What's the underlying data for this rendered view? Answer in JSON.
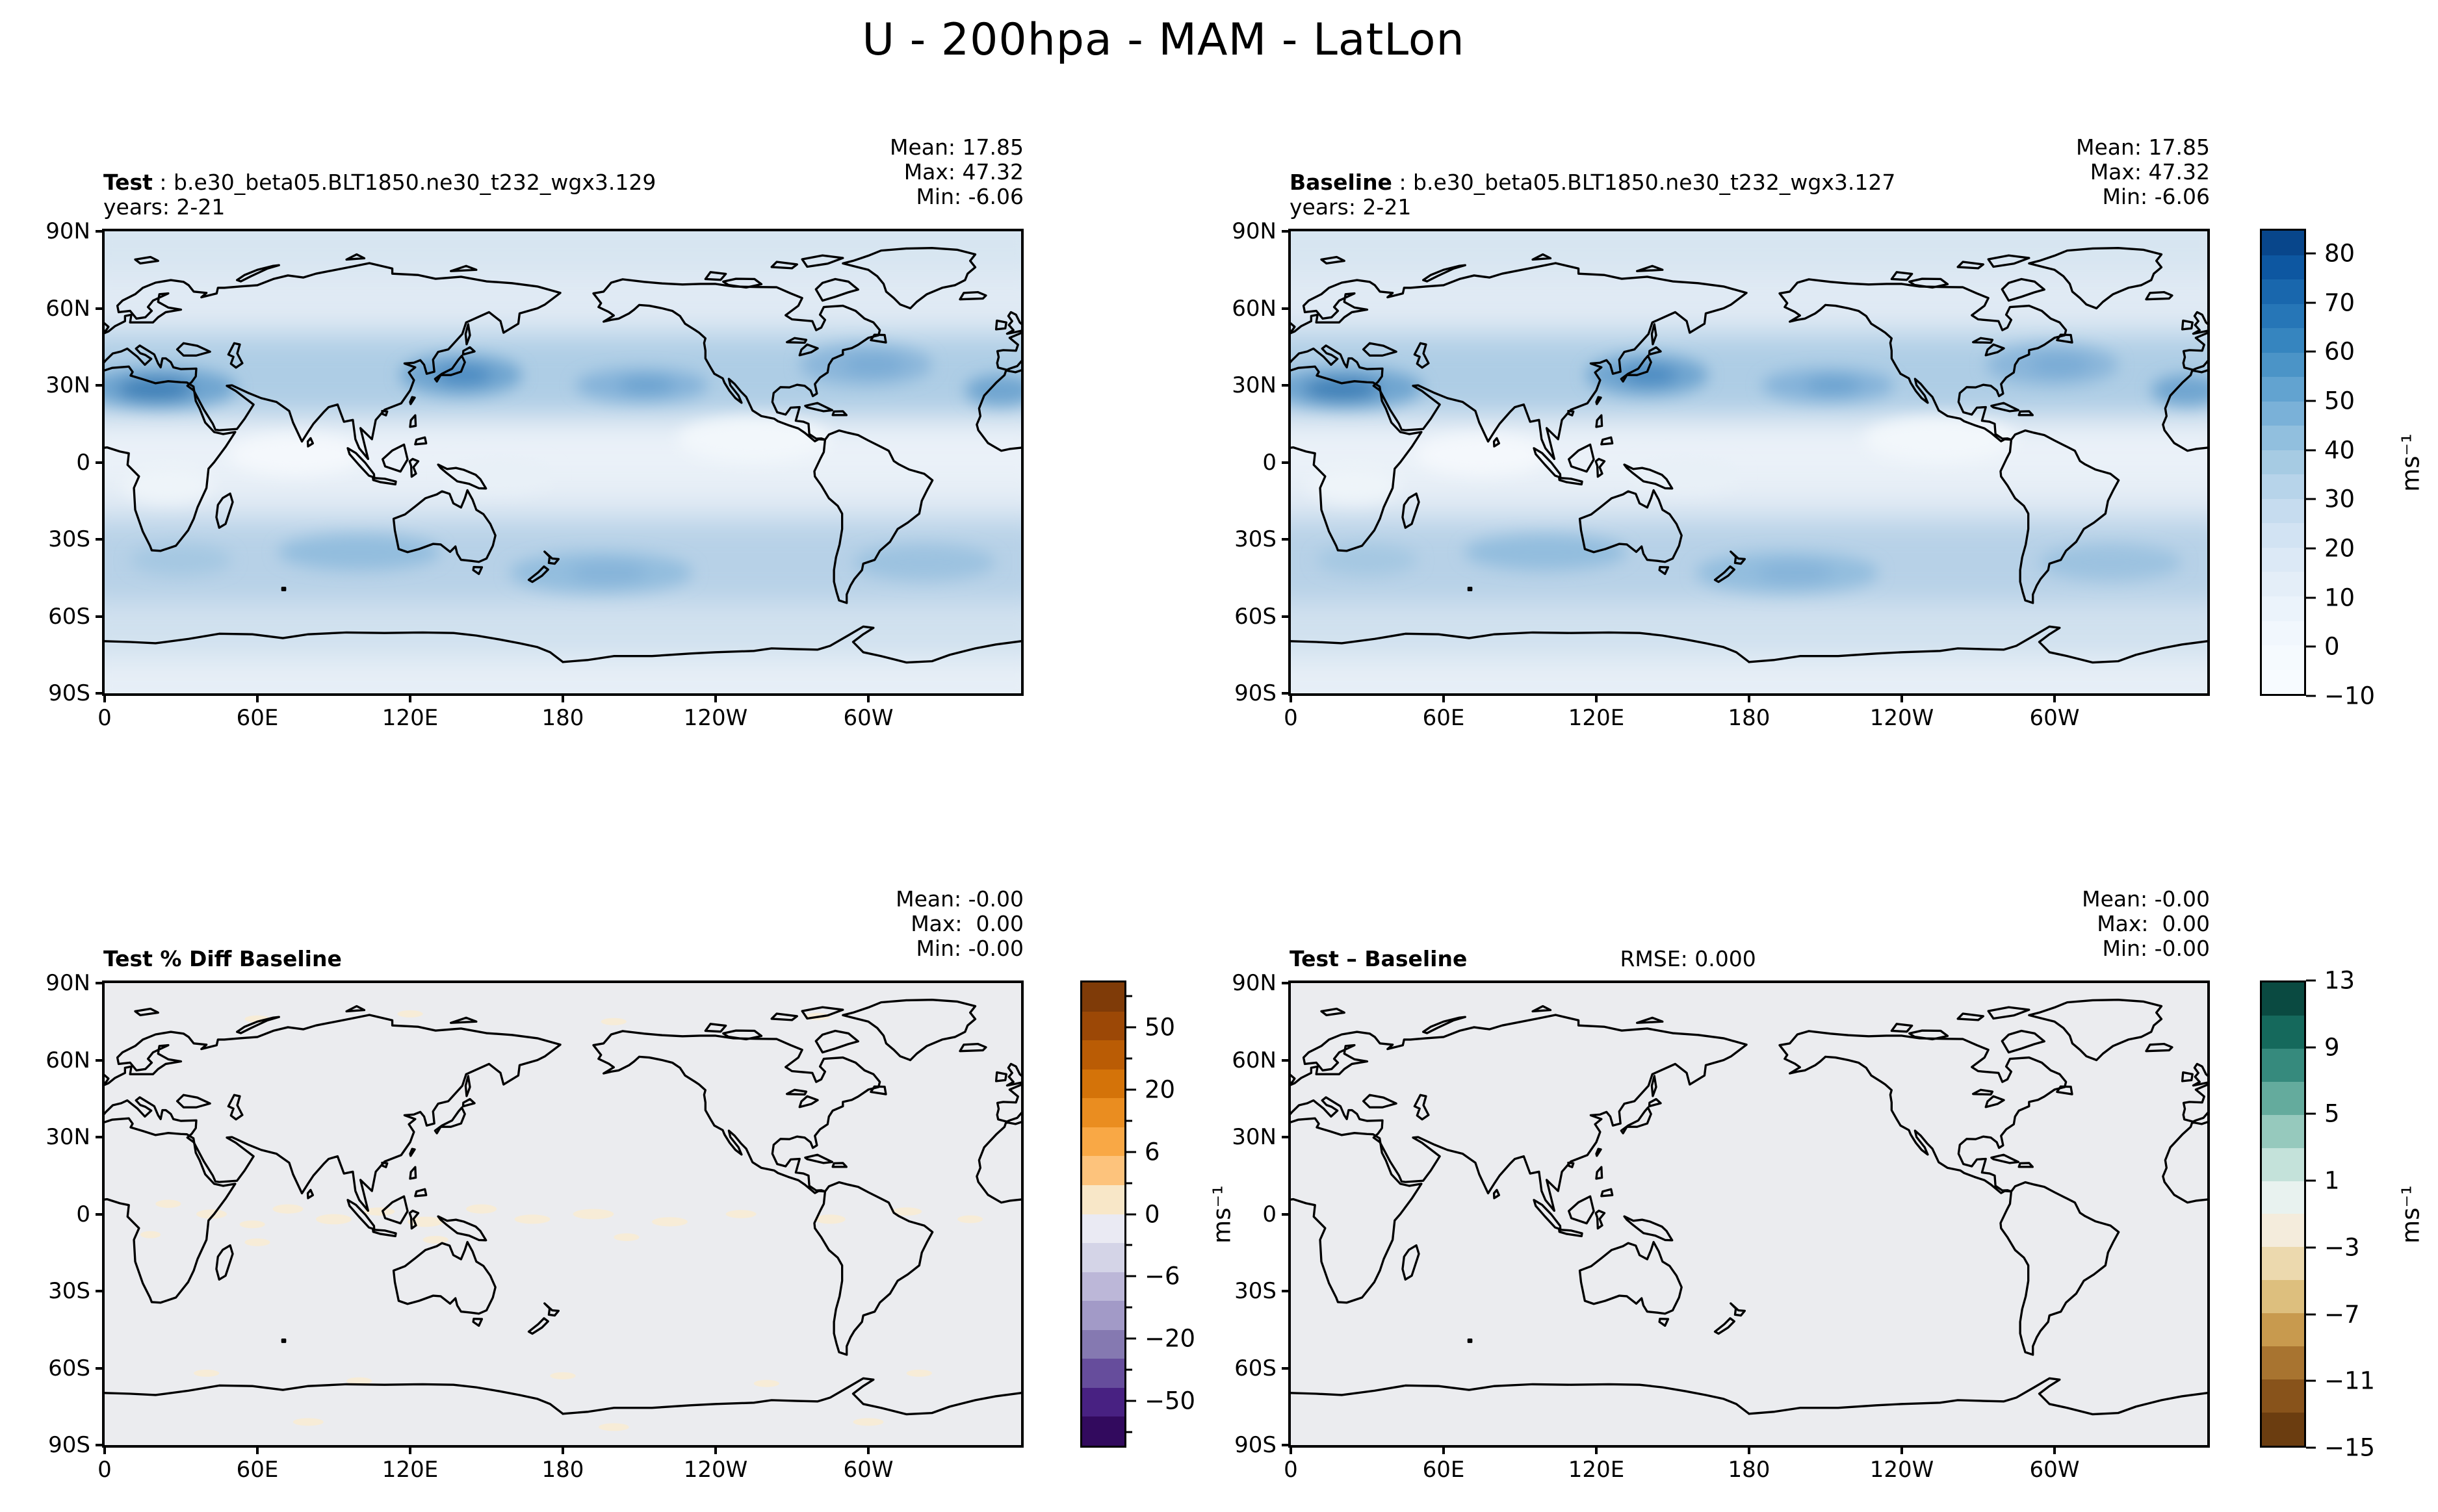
{
  "title": "U - 200hpa - MAM - LatLon",
  "panels": [
    {
      "title_bold": "Test",
      "title_rest": " : b.e30_beta05.BLT1850.ne30_t232_wgx3.129",
      "years": "years: 2-21",
      "mean": "Mean: 17.85",
      "max": "Max: 47.32",
      "min": "Min: -6.06"
    },
    {
      "title_bold": "Baseline",
      "title_rest": " : b.e30_beta05.BLT1850.ne30_t232_wgx3.127",
      "years": "years: 2-21",
      "mean": "Mean: 17.85",
      "max": "Max: 47.32",
      "min": "Min: -6.06"
    },
    {
      "title_bold": "Test % Diff Baseline",
      "mean": "Mean: -0.00",
      "max": "Max:  0.00",
      "min": "Min: -0.00"
    },
    {
      "title_bold": "Test – Baseline",
      "rmse": "RMSE: 0.000",
      "mean": "Mean: -0.00",
      "max": "Max:  0.00",
      "min": "Min: -0.00"
    }
  ],
  "axes": {
    "xticks": [
      "0",
      "60E",
      "120E",
      "180",
      "120W",
      "60W"
    ],
    "yticks": [
      "90N",
      "60N",
      "30N",
      "0",
      "30S",
      "60S",
      "90S"
    ]
  },
  "colorbars": {
    "main": {
      "unit": "ms⁻¹",
      "colors": [
        "#08468b",
        "#0d57a1",
        "#1967ad",
        "#2676b7",
        "#3685bf",
        "#4b94c7",
        "#62a3d0",
        "#7ab1d8",
        "#91bfde",
        "#a6cbe3",
        "#b7d4ea",
        "#c6dcef",
        "#d2e3f3",
        "#dce9f6",
        "#e4eef8",
        "#ebf3fb",
        "#f1f7fd",
        "#f5fafe",
        "#f7fbff"
      ],
      "ticks": [
        {
          "label": "80",
          "pos": 0.0526
        },
        {
          "label": "70",
          "pos": 0.1579
        },
        {
          "label": "60",
          "pos": 0.2632
        },
        {
          "label": "50",
          "pos": 0.3684
        },
        {
          "label": "40",
          "pos": 0.4737
        },
        {
          "label": "30",
          "pos": 0.5789
        },
        {
          "label": "20",
          "pos": 0.6842
        },
        {
          "label": "10",
          "pos": 0.7895
        },
        {
          "label": "0",
          "pos": 0.8947
        },
        {
          "label": "−10",
          "pos": 1.0
        }
      ],
      "minor": []
    },
    "pct": {
      "unit": "ms⁻¹",
      "colors": [
        "#7f3b08",
        "#9c4806",
        "#ba5c05",
        "#d47309",
        "#ea8d20",
        "#f9a845",
        "#fdc37c",
        "#f8e7c8",
        "#eaeaf3",
        "#d4d4e7",
        "#bcb7d8",
        "#a29ac7",
        "#8579b1",
        "#664d9c",
        "#482182",
        "#320a5e"
      ],
      "ticks": [
        {
          "label": "50",
          "pos": 0.1
        },
        {
          "label": "20",
          "pos": 0.2333
        },
        {
          "label": "6",
          "pos": 0.3667
        },
        {
          "label": "0",
          "pos": 0.5
        },
        {
          "label": "−6",
          "pos": 0.6333
        },
        {
          "label": "−20",
          "pos": 0.7667
        },
        {
          "label": "−50",
          "pos": 0.9
        }
      ],
      "minor": [
        0.0333,
        0.1667,
        0.3,
        0.4333,
        0.5667,
        0.7,
        0.8333,
        0.9667
      ]
    },
    "diff": {
      "unit": "ms⁻¹",
      "colors": [
        "#0a4a41",
        "#15695c",
        "#368a7d",
        "#64ab9d",
        "#96c9bd",
        "#c4e2da",
        "#e8f2ef",
        "#f4ecdc",
        "#ecd9ae",
        "#ddbf7e",
        "#c89a4e",
        "#a87430",
        "#88531b",
        "#6b3d10"
      ],
      "ticks": [
        {
          "label": "13",
          "pos": 0.0
        },
        {
          "label": "9",
          "pos": 0.1429
        },
        {
          "label": "5",
          "pos": 0.2857
        },
        {
          "label": "1",
          "pos": 0.4286
        },
        {
          "label": "−3",
          "pos": 0.5714
        },
        {
          "label": "−7",
          "pos": 0.7143
        },
        {
          "label": "−11",
          "pos": 0.8571
        },
        {
          "label": "−15",
          "pos": 1.0
        }
      ],
      "minor": []
    }
  },
  "chart_data": {
    "type": "heatmap",
    "title": "U - 200hpa - MAM - LatLon",
    "variable": "U",
    "level": "200hpa",
    "season": "MAM",
    "projection": "LatLon",
    "xlabel_ticks_deg": [
      0,
      60,
      120,
      180,
      240,
      300
    ],
    "ylabel_ticks_deg": [
      90,
      60,
      30,
      0,
      -30,
      -60,
      -90
    ],
    "panels": [
      {
        "name": "Test",
        "run": "b.e30_beta05.BLT1850.ne30_t232_wgx3.129",
        "years": "2-21",
        "mean": 17.85,
        "max": 47.32,
        "min": -6.06,
        "colormap": "Blues"
      },
      {
        "name": "Baseline",
        "run": "b.e30_beta05.BLT1850.ne30_t232_wgx3.127",
        "years": "2-21",
        "mean": 17.85,
        "max": 47.32,
        "min": -6.06,
        "colormap": "Blues"
      },
      {
        "name": "Test % Diff Baseline",
        "mean": -0.0,
        "max": 0.0,
        "min": -0.0,
        "colormap": "PuOr_r"
      },
      {
        "name": "Test – Baseline",
        "rmse": 0.0,
        "mean": -0.0,
        "max": 0.0,
        "min": -0.0,
        "colormap": "BrBG"
      }
    ],
    "colorbar_main": {
      "units": "ms-1",
      "tick_values": [
        80,
        70,
        60,
        50,
        40,
        30,
        20,
        10,
        0,
        -10
      ],
      "range": [
        -10,
        85
      ],
      "segment_step": 5
    },
    "colorbar_pct": {
      "units": "ms-1",
      "tick_values": [
        50,
        20,
        6,
        0,
        -6,
        -20,
        -50
      ]
    },
    "colorbar_diff": {
      "units": "ms-1",
      "tick_values": [
        13,
        9,
        5,
        1,
        -3,
        -7,
        -11,
        -15
      ],
      "range": [
        -15,
        13
      ],
      "segment_step": 2
    }
  }
}
